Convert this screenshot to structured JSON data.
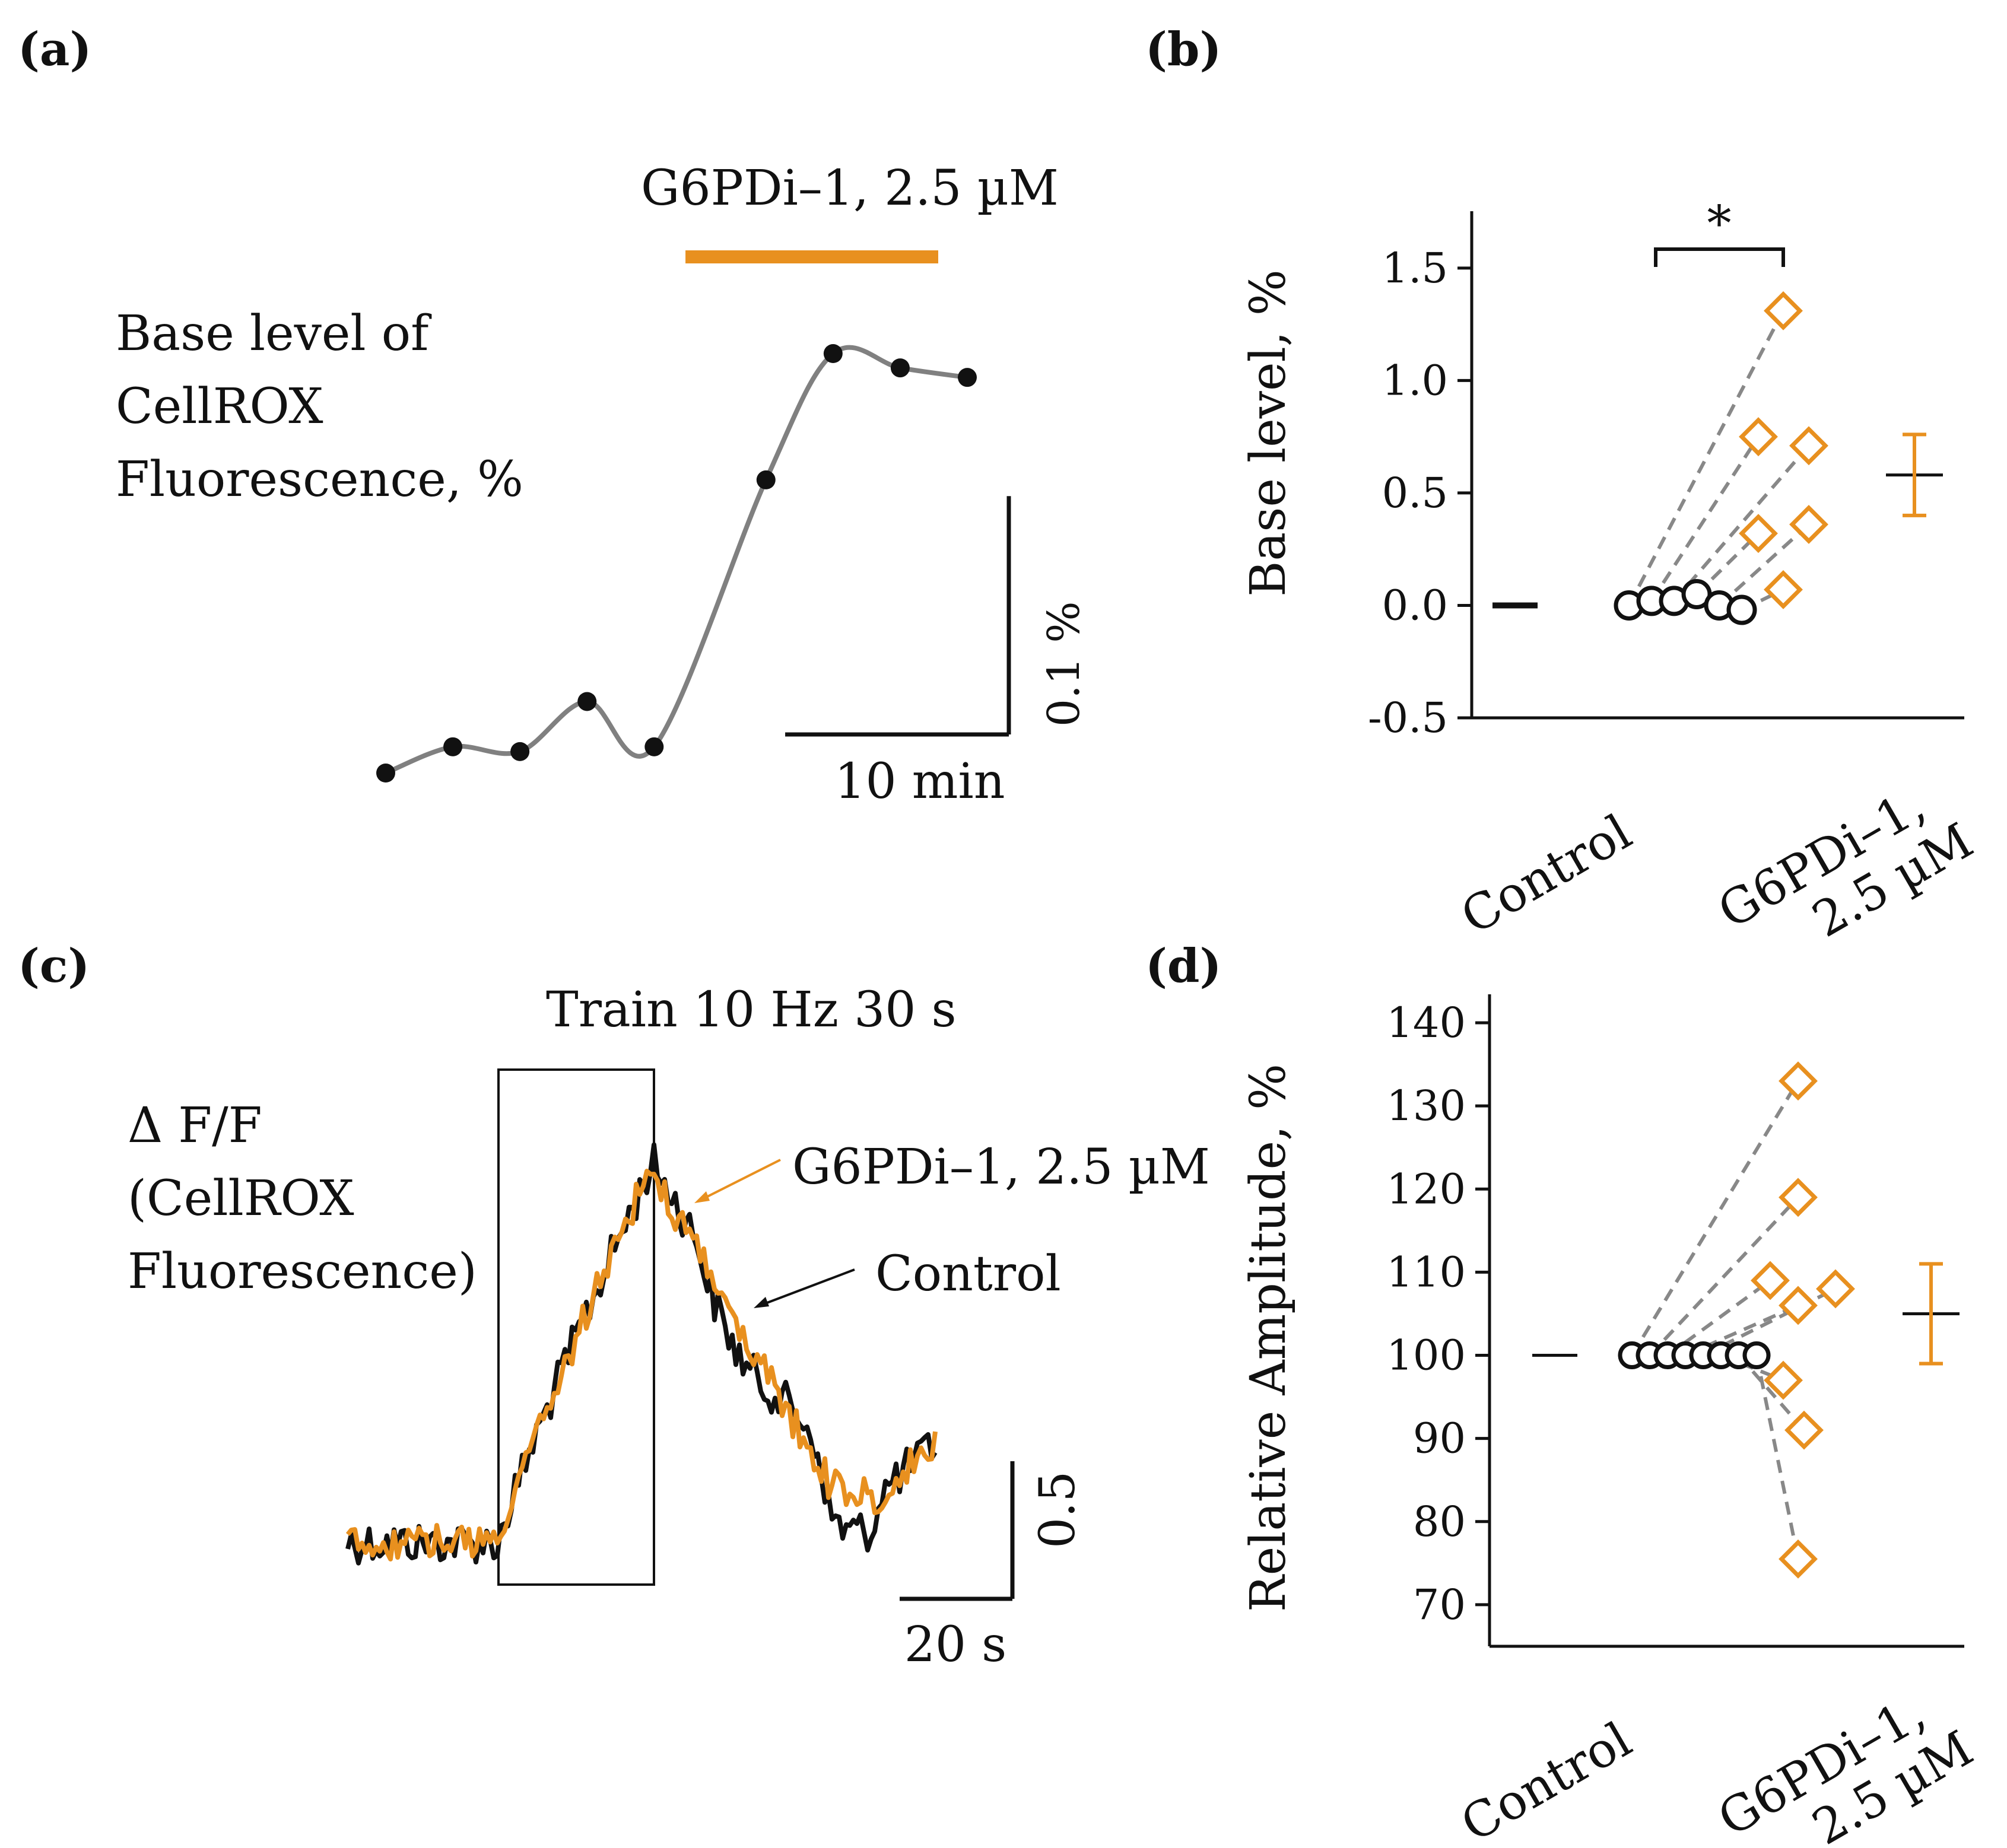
{
  "colors": {
    "orange": "#E8901F",
    "black": "#111111",
    "gray": "#808080",
    "dash": "#888888"
  },
  "chart_data": [
    {
      "panel": "(a)",
      "type": "line",
      "label": "Base level of\nCellROX\nFluorescence, %",
      "drug_bar_label": "G6PDi–1, 2.5 µM",
      "time_min": [
        0,
        3,
        6,
        9,
        12,
        17,
        20,
        23,
        26
      ],
      "values_pct": [
        0.0,
        0.011,
        0.009,
        0.03,
        0.011,
        0.123,
        0.176,
        0.17,
        0.166
      ],
      "drug_start_min": 13.4,
      "drug_end_min": 24.7,
      "scalebar_y": {
        "value": 0.1,
        "label": "0.1 %"
      },
      "scalebar_x": {
        "value": 10,
        "label": "10 min"
      }
    },
    {
      "panel": "(b)",
      "type": "scatter",
      "ylabel": "Base level, %",
      "ylim": [
        -0.5,
        1.7
      ],
      "yticks": [
        -0.5,
        0.0,
        0.5,
        1.0,
        1.5
      ],
      "ytick_labels": [
        "-0.5",
        "0.0",
        "0.5",
        "1.0",
        "1.5"
      ],
      "categories": [
        "Control",
        "G6PDi–1,\n2.5 µM"
      ],
      "control_points": [
        0.0,
        0.02,
        0.02,
        0.05,
        0.0,
        -0.02
      ],
      "drug_points": [
        1.31,
        0.75,
        0.71,
        0.32,
        0.36,
        0.07
      ],
      "control_mean": 0.0,
      "drug_mean": 0.58,
      "drug_err": 0.18,
      "significance": "*"
    },
    {
      "panel": "(c)",
      "type": "line",
      "label": "Δ F/F\n(CellROX\nFluorescence)",
      "train_label": "Train 10 Hz 30 s",
      "series": [
        {
          "name": "G6PDi–1, 2.5 µM",
          "color": "#E8901F"
        },
        {
          "name": "Control",
          "color": "#111111"
        }
      ],
      "scalebar_y": {
        "value": 0.5,
        "label": "0.5"
      },
      "scalebar_x": {
        "value": 20,
        "label": "20 s"
      }
    },
    {
      "panel": "(d)",
      "type": "scatter",
      "ylabel": "Relative Amplitude, %",
      "ylim": [
        65,
        142
      ],
      "yticks": [
        70,
        80,
        90,
        100,
        110,
        120,
        130,
        140
      ],
      "ytick_labels": [
        "70",
        "80",
        "90",
        "100",
        "110",
        "120",
        "130",
        "140"
      ],
      "categories": [
        "Control",
        "G6PDi–1,\n2.5 µM"
      ],
      "control_points": [
        100,
        100,
        100,
        100,
        100,
        100,
        100,
        100
      ],
      "drug_points": [
        133,
        119,
        109,
        106,
        108,
        97,
        91,
        75.5
      ],
      "control_mean": 100,
      "drug_mean": 105,
      "drug_err": 6
    }
  ]
}
